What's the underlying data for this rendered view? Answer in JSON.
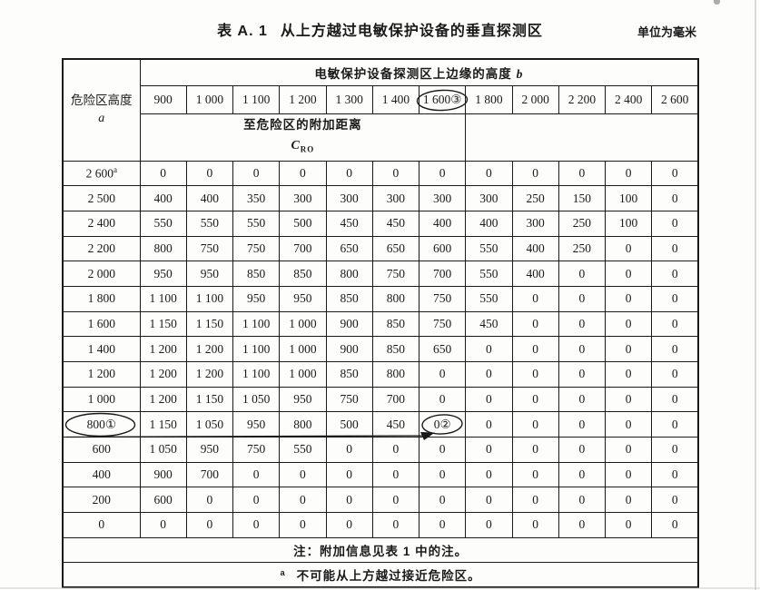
{
  "page": {
    "title_prefix": "表 A. 1",
    "title": "从上方越过电敏保护设备的垂直探测区",
    "unit_label": "单位为毫米"
  },
  "table": {
    "row_header": {
      "line1": "危险区高度",
      "symbol": "a"
    },
    "band_title": {
      "text": "电敏保护设备探测区上边缘的高度",
      "symbol": "b"
    },
    "sub_header": {
      "line1": "至危险区的附加距离",
      "symbol": "C",
      "subscript": "RO"
    },
    "columns": [
      "900",
      "1 000",
      "1 100",
      "1 200",
      "1 300",
      "1 400",
      "1 600③",
      "1 800",
      "2 000",
      "2 200",
      "2 400",
      "2 600"
    ],
    "rows": [
      {
        "label": "2 600",
        "sup": "a",
        "values": [
          "0",
          "0",
          "0",
          "0",
          "0",
          "0",
          "0",
          "0",
          "0",
          "0",
          "0",
          "0"
        ]
      },
      {
        "label": "2 500",
        "values": [
          "400",
          "400",
          "350",
          "300",
          "300",
          "300",
          "300",
          "300",
          "250",
          "150",
          "100",
          "0"
        ]
      },
      {
        "label": "2 400",
        "values": [
          "550",
          "550",
          "550",
          "500",
          "450",
          "450",
          "400",
          "400",
          "300",
          "250",
          "100",
          "0"
        ]
      },
      {
        "label": "2 200",
        "values": [
          "800",
          "750",
          "750",
          "700",
          "650",
          "650",
          "600",
          "550",
          "400",
          "250",
          "0",
          "0"
        ]
      },
      {
        "label": "2 000",
        "values": [
          "950",
          "950",
          "850",
          "850",
          "800",
          "750",
          "700",
          "550",
          "400",
          "0",
          "0",
          "0"
        ]
      },
      {
        "label": "1 800",
        "values": [
          "1 100",
          "1 100",
          "950",
          "950",
          "850",
          "800",
          "750",
          "550",
          "0",
          "0",
          "0",
          "0"
        ]
      },
      {
        "label": "1 600",
        "values": [
          "1 150",
          "1 150",
          "1 100",
          "1 000",
          "900",
          "850",
          "750",
          "450",
          "0",
          "0",
          "0",
          "0"
        ]
      },
      {
        "label": "1 400",
        "values": [
          "1 200",
          "1 200",
          "1 100",
          "1 000",
          "900",
          "850",
          "650",
          "0",
          "0",
          "0",
          "0",
          "0"
        ]
      },
      {
        "label": "1 200",
        "values": [
          "1 200",
          "1 200",
          "1 100",
          "1 000",
          "850",
          "800",
          "0",
          "0",
          "0",
          "0",
          "0",
          "0"
        ]
      },
      {
        "label": "1 000",
        "values": [
          "1 200",
          "1 150",
          "1 050",
          "950",
          "750",
          "700",
          "0",
          "0",
          "0",
          "0",
          "0",
          "0"
        ]
      },
      {
        "label": "800①",
        "values": [
          "1 150",
          "1 050",
          "950",
          "800",
          "500",
          "450",
          "0②",
          "0",
          "0",
          "0",
          "0",
          "0"
        ]
      },
      {
        "label": "600",
        "values": [
          "1 050",
          "950",
          "750",
          "550",
          "0",
          "0",
          "0",
          "0",
          "0",
          "0",
          "0",
          "0"
        ]
      },
      {
        "label": "400",
        "values": [
          "900",
          "700",
          "0",
          "0",
          "0",
          "0",
          "0",
          "0",
          "0",
          "0",
          "0",
          "0"
        ]
      },
      {
        "label": "200",
        "values": [
          "600",
          "0",
          "0",
          "0",
          "0",
          "0",
          "0",
          "0",
          "0",
          "0",
          "0",
          "0"
        ]
      },
      {
        "label": "0",
        "values": [
          "0",
          "0",
          "0",
          "0",
          "0",
          "0",
          "0",
          "0",
          "0",
          "0",
          "0",
          "0"
        ]
      }
    ],
    "note": "注：附加信息见表 1 中的注。",
    "footnote": {
      "marker": "a",
      "text": "不可能从上方越过接近危险区。"
    }
  },
  "annotations": {
    "ink_color": "#1a1a1a",
    "circled_marks": [
      {
        "text": "1 600③",
        "location": "column header 1 600"
      },
      {
        "text": "800①",
        "location": "row label 800"
      },
      {
        "text": "0②",
        "location": "row 800 at column 1 600"
      }
    ],
    "arrow": {
      "from": "bottom edge of row 800",
      "to": "circled 0②"
    }
  }
}
